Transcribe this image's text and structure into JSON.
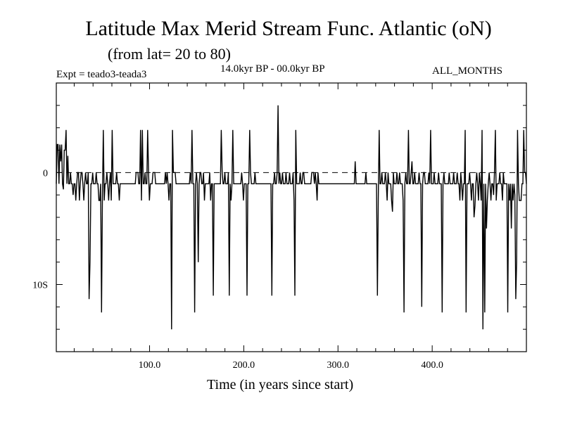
{
  "chart_data": {
    "type": "line",
    "title": "Latitude Max Merid Stream Func. Atlantic (oN)",
    "subtitle": "(from lat= 20 to 80)",
    "experiment": "Expt = teado3-teada3",
    "period": "14.0kyr BP - 00.0kyr BP",
    "months": "ALL_MONTHS",
    "xlabel": "Time (in years since start)",
    "ylabel": "",
    "xlim": [
      1,
      500
    ],
    "ylim": [
      -16,
      8
    ],
    "x_ticks": [
      {
        "value": 100,
        "label": "100.0"
      },
      {
        "value": 200,
        "label": "200.0"
      },
      {
        "value": 300,
        "label": "300.0"
      },
      {
        "value": 400,
        "label": "400.0"
      }
    ],
    "y_ticks": [
      {
        "value": 0,
        "label": "0"
      },
      {
        "value": -10,
        "label": "10S"
      }
    ],
    "reference_line": {
      "y": 0,
      "style": "dashed"
    },
    "series": [
      {
        "name": "teado3-teada3",
        "values": [
          -1,
          2.5,
          2.5,
          -1,
          2.5,
          1,
          2.5,
          -1,
          -1.5,
          2,
          2,
          3.8,
          -1,
          1.5,
          -1,
          -1,
          0,
          -1,
          -1,
          -2,
          -1,
          -1,
          -2.5,
          -1,
          0,
          0,
          -2.5,
          -1,
          0,
          0,
          -1,
          -2.5,
          -1,
          0,
          -1,
          -1,
          0,
          -11.3,
          -8,
          -1,
          -1,
          0,
          -1,
          -1,
          -1,
          0,
          -1,
          -1,
          -2.5,
          -2.5,
          -1,
          -12.5,
          -2.5,
          3.8,
          -2.5,
          -1,
          -1,
          0,
          -1,
          -2.5,
          -1,
          0,
          -2.5,
          3.8,
          -1,
          -1,
          -1,
          -1,
          0,
          -1,
          -1,
          -2.5,
          -1,
          -1,
          -1,
          -1,
          -1,
          -1,
          -1,
          -1,
          -1,
          -1,
          -1,
          -1,
          -1,
          -1,
          -1,
          -1,
          -1,
          -1,
          0,
          0,
          0,
          -1,
          -1,
          3.8,
          -2.5,
          3.8,
          -1,
          -1,
          0,
          -1,
          -1,
          3.8,
          0,
          -2.5,
          -1,
          -1,
          -1,
          0,
          0,
          0,
          -1,
          -1,
          -1,
          -1,
          -1,
          -1,
          -1,
          -1,
          -1,
          -1,
          -1,
          0,
          -1,
          0,
          -1,
          -2.5,
          -1,
          -1,
          -14,
          3.8,
          0,
          0,
          0,
          -1,
          -1,
          -1,
          -1,
          -1,
          -1,
          -1,
          -1,
          -1,
          -1,
          -1,
          -1,
          -1,
          -1,
          -1,
          -1,
          0,
          -1,
          3.8,
          -1,
          -1,
          -12.5,
          -1,
          0,
          -1,
          -8,
          -1,
          0,
          0,
          -1,
          -1,
          0,
          -2.5,
          -1,
          -1,
          -1,
          -1,
          -1,
          0,
          -2.5,
          -1,
          -1,
          -11,
          -1,
          -1,
          -1,
          -1,
          -1,
          -1,
          -1,
          -1,
          3.8,
          0,
          -1,
          -1,
          0,
          -1,
          -1,
          -1,
          0,
          -11,
          -1,
          -2.5,
          -1,
          3.8,
          -1,
          -1,
          -1,
          -1,
          -1,
          -1,
          -1,
          -1,
          -1,
          0,
          -1,
          -2.5,
          -1,
          -1,
          -1,
          -11,
          -1,
          -1,
          3.8,
          0,
          -1,
          -1,
          -1,
          -1,
          0,
          -1,
          -1,
          -1,
          -1,
          -1,
          -1,
          -1,
          -1,
          -1,
          -1,
          -1,
          -1,
          -1,
          -1,
          -1,
          -1,
          -1,
          -1,
          -11,
          -1,
          -1,
          0,
          -1,
          -1,
          0,
          6,
          -1,
          0,
          -1,
          -1,
          0,
          -1,
          -1,
          -1,
          0,
          -1,
          -1,
          -1,
          0,
          -1,
          -1,
          -1,
          0,
          -2.5,
          -11,
          3.8,
          -1,
          -1,
          -1,
          -1,
          0,
          -1,
          -1,
          0,
          0,
          -1,
          -1,
          -1,
          -1,
          -1,
          -1,
          -1,
          -1,
          0,
          0,
          0,
          -1,
          0,
          -1,
          -2.5,
          0,
          -1,
          -1,
          -1,
          -1,
          -1,
          -1,
          -1,
          -1,
          -1,
          -1,
          -1,
          -1,
          -1,
          -1,
          -1,
          -1,
          -1,
          -1,
          -1,
          -1,
          -1,
          -1,
          -1,
          -1,
          -1,
          -1,
          -1,
          -1,
          -1,
          -1,
          -1,
          -1,
          -1,
          -1,
          -1,
          -1,
          -1,
          -1,
          -1,
          -1,
          -1,
          1,
          -1,
          -1,
          -1,
          -1,
          -1,
          -1,
          -1,
          -1,
          -1,
          -1,
          -1,
          0,
          -1,
          -1,
          -1,
          -1,
          -1,
          -1,
          -1,
          -1,
          -1,
          -1,
          -1,
          -1,
          -11,
          -2.5,
          3.8,
          -1,
          -1,
          0,
          -1,
          -1,
          -1,
          0,
          -1,
          -2.5,
          0,
          -1,
          -1,
          -1,
          -2.5,
          -3.5,
          0,
          -1,
          -1,
          -1,
          0,
          -1,
          -1,
          0,
          -1,
          -1,
          -1,
          -2.5,
          -12.5,
          -1,
          0,
          -1,
          -1,
          3.8,
          -1,
          -1,
          0,
          1,
          -1,
          -1,
          0,
          -1,
          -1,
          -1,
          -1,
          0,
          -1,
          -1,
          -12,
          -1,
          0,
          0,
          -1,
          -1,
          -1,
          -1,
          0,
          -1,
          3.8,
          -1,
          -1,
          -1,
          0,
          -1,
          -1,
          -1,
          -1,
          0,
          -1,
          -1,
          -1,
          -12.5,
          -1,
          0,
          -1,
          -1,
          -1,
          -1,
          -1,
          0,
          -1,
          -1,
          -1,
          -1,
          0,
          -1,
          -1,
          -1,
          0,
          -1,
          -1,
          -2.5,
          0,
          -1,
          -2.5,
          -1,
          -1,
          3.8,
          -12.5,
          -1,
          -1,
          -1,
          0,
          -1,
          -2.5,
          -1,
          -1,
          -4,
          -3,
          -1,
          0,
          -1,
          -2.5,
          0,
          -1,
          -2.5,
          3.8,
          -14,
          -1,
          -12.5,
          -1,
          -5,
          -2.5,
          -1,
          0,
          -1,
          -2.5,
          -1,
          -1,
          -2,
          0,
          3.8,
          -2.5,
          -1,
          -1,
          -1,
          0,
          -1,
          -1,
          -2.5,
          0,
          -1,
          -1,
          -1,
          -1,
          -12.5,
          -1,
          -2.5,
          -1,
          -5,
          -1,
          -2.5,
          -1,
          -2,
          -11.3,
          -8,
          3.8,
          -1,
          -2.5,
          -2.5,
          -2.5,
          -1,
          -1,
          3.8,
          0,
          0,
          -1
        ]
      }
    ]
  }
}
